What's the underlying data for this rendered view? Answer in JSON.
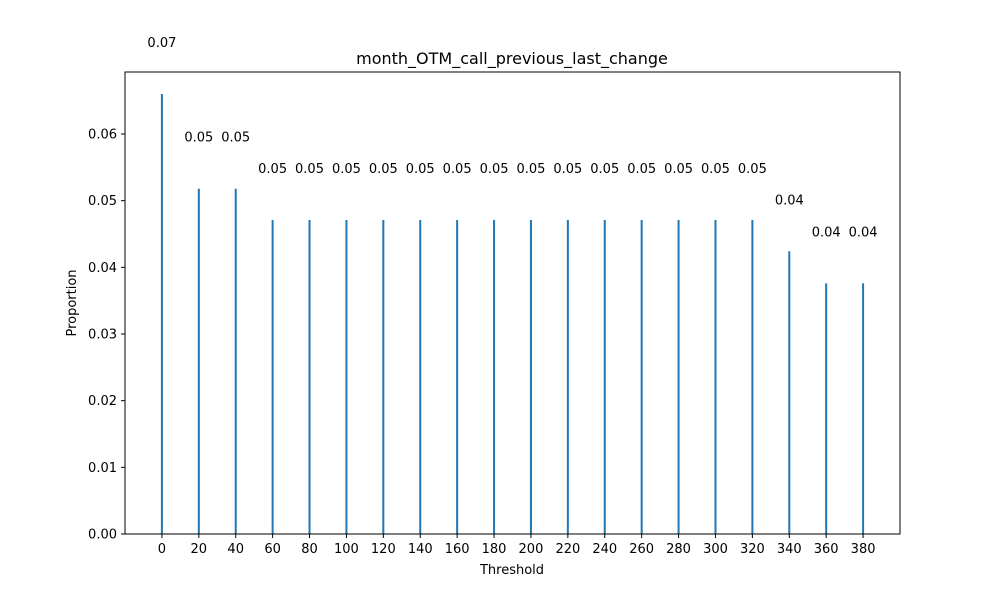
{
  "chart_data": {
    "type": "bar",
    "title": "month_OTM_call_previous_last_change",
    "xlabel": "Threshold",
    "ylabel": "Proportion",
    "x": [
      0,
      20,
      40,
      60,
      80,
      100,
      120,
      140,
      160,
      180,
      200,
      220,
      240,
      260,
      280,
      300,
      320,
      340,
      360,
      380
    ],
    "values": [
      0.066,
      0.0518,
      0.0518,
      0.0471,
      0.0471,
      0.0471,
      0.0471,
      0.0471,
      0.0471,
      0.0471,
      0.0471,
      0.0471,
      0.0471,
      0.0471,
      0.0471,
      0.0471,
      0.0471,
      0.0424,
      0.0376,
      0.0376
    ],
    "data_labels": [
      "0.07",
      "0.05",
      "0.05",
      "0.05",
      "0.05",
      "0.05",
      "0.05",
      "0.05",
      "0.05",
      "0.05",
      "0.05",
      "0.05",
      "0.05",
      "0.05",
      "0.05",
      "0.05",
      "0.05",
      "0.04",
      "0.04",
      "0.04"
    ],
    "xticks": [
      "0",
      "20",
      "40",
      "60",
      "80",
      "100",
      "120",
      "140",
      "160",
      "180",
      "200",
      "220",
      "240",
      "260",
      "280",
      "300",
      "320",
      "340",
      "360",
      "380"
    ],
    "yticks": [
      "0.00",
      "0.01",
      "0.02",
      "0.03",
      "0.04",
      "0.05",
      "0.06"
    ],
    "xlim": [
      -20,
      400
    ],
    "ylim": [
      0,
      0.0693
    ],
    "bar_color": "#1f77b4",
    "grid": false,
    "legend": "none"
  }
}
